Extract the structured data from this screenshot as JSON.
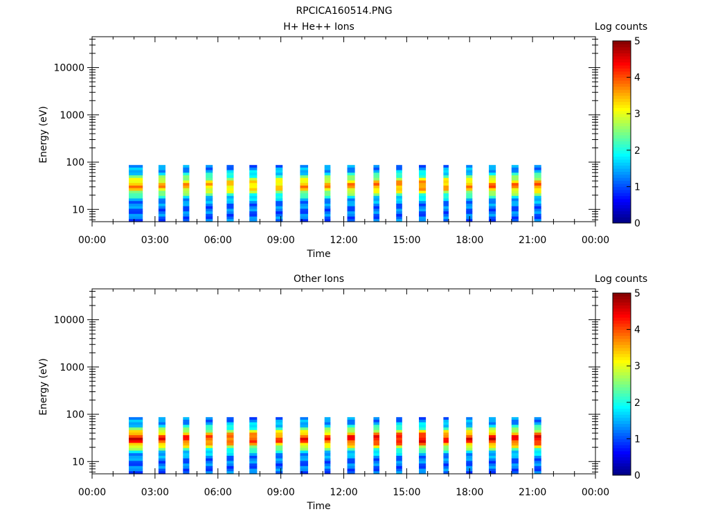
{
  "figure_title": "RPCICA160514.PNG",
  "chart_data": [
    {
      "type": "heatmap",
      "title": "H+ He++ Ions",
      "xlabel": "Time",
      "ylabel": "Energy (eV)",
      "yscale": "log",
      "ylim": [
        5.5,
        45000
      ],
      "xlim_hours": [
        0,
        24
      ],
      "x_ticks": [
        "00:00",
        "03:00",
        "06:00",
        "09:00",
        "12:00",
        "15:00",
        "18:00",
        "21:00",
        "00:00"
      ],
      "y_ticks": [
        "10",
        "100",
        "1000",
        "10000"
      ],
      "colorbar": {
        "label": "Log counts",
        "min": 0,
        "max": 5,
        "ticks": [
          "0",
          "1",
          "2",
          "3",
          "4",
          "5"
        ]
      },
      "energy_range_eV": [
        5.5,
        87
      ],
      "peak_energy_eV": 32,
      "bursts": [
        {
          "start": "01:45",
          "end": "02:25",
          "peak_log_counts": 3.6
        },
        {
          "start": "03:10",
          "end": "03:30",
          "peak_log_counts": 3.5
        },
        {
          "start": "04:20",
          "end": "04:38",
          "peak_log_counts": 3.5
        },
        {
          "start": "05:25",
          "end": "05:45",
          "peak_log_counts": 3.4
        },
        {
          "start": "06:25",
          "end": "06:45",
          "peak_log_counts": 3.4
        },
        {
          "start": "07:30",
          "end": "07:52",
          "peak_log_counts": 3.4
        },
        {
          "start": "08:45",
          "end": "09:05",
          "peak_log_counts": 3.4
        },
        {
          "start": "09:55",
          "end": "10:18",
          "peak_log_counts": 3.6
        },
        {
          "start": "11:05",
          "end": "11:22",
          "peak_log_counts": 3.5
        },
        {
          "start": "12:10",
          "end": "12:32",
          "peak_log_counts": 3.6
        },
        {
          "start": "13:25",
          "end": "13:42",
          "peak_log_counts": 3.7
        },
        {
          "start": "14:30",
          "end": "14:47",
          "peak_log_counts": 3.7
        },
        {
          "start": "15:35",
          "end": "15:55",
          "peak_log_counts": 3.8
        },
        {
          "start": "16:45",
          "end": "17:00",
          "peak_log_counts": 3.6
        },
        {
          "start": "17:50",
          "end": "18:08",
          "peak_log_counts": 3.6
        },
        {
          "start": "18:55",
          "end": "19:15",
          "peak_log_counts": 3.8
        },
        {
          "start": "20:00",
          "end": "20:20",
          "peak_log_counts": 3.7
        },
        {
          "start": "21:05",
          "end": "21:25",
          "peak_log_counts": 3.8
        }
      ]
    },
    {
      "type": "heatmap",
      "title": "Other Ions",
      "xlabel": "Time",
      "ylabel": "Energy (eV)",
      "yscale": "log",
      "ylim": [
        5.5,
        45000
      ],
      "xlim_hours": [
        0,
        24
      ],
      "x_ticks": [
        "00:00",
        "03:00",
        "06:00",
        "09:00",
        "12:00",
        "15:00",
        "18:00",
        "21:00",
        "00:00"
      ],
      "y_ticks": [
        "10",
        "100",
        "1000",
        "10000"
      ],
      "colorbar": {
        "label": "Log counts",
        "min": 0,
        "max": 5,
        "ticks": [
          "0",
          "1",
          "2",
          "3",
          "4",
          "5"
        ]
      },
      "energy_range_eV": [
        5.5,
        87
      ],
      "peak_energy_eV": 30,
      "bursts": [
        {
          "start": "01:45",
          "end": "02:25",
          "peak_log_counts": 4.4
        },
        {
          "start": "03:10",
          "end": "03:30",
          "peak_log_counts": 4.2
        },
        {
          "start": "04:20",
          "end": "04:38",
          "peak_log_counts": 4.2
        },
        {
          "start": "05:25",
          "end": "05:45",
          "peak_log_counts": 4.0
        },
        {
          "start": "06:25",
          "end": "06:45",
          "peak_log_counts": 4.0
        },
        {
          "start": "07:30",
          "end": "07:52",
          "peak_log_counts": 4.1
        },
        {
          "start": "08:45",
          "end": "09:05",
          "peak_log_counts": 4.0
        },
        {
          "start": "09:55",
          "end": "10:18",
          "peak_log_counts": 4.2
        },
        {
          "start": "11:05",
          "end": "11:22",
          "peak_log_counts": 4.1
        },
        {
          "start": "12:10",
          "end": "12:32",
          "peak_log_counts": 4.3
        },
        {
          "start": "13:25",
          "end": "13:42",
          "peak_log_counts": 4.4
        },
        {
          "start": "14:30",
          "end": "14:47",
          "peak_log_counts": 4.4
        },
        {
          "start": "15:35",
          "end": "15:55",
          "peak_log_counts": 4.5
        },
        {
          "start": "16:45",
          "end": "17:00",
          "peak_log_counts": 4.2
        },
        {
          "start": "17:50",
          "end": "18:08",
          "peak_log_counts": 4.3
        },
        {
          "start": "18:55",
          "end": "19:15",
          "peak_log_counts": 4.4
        },
        {
          "start": "20:00",
          "end": "20:20",
          "peak_log_counts": 4.3
        },
        {
          "start": "21:05",
          "end": "21:25",
          "peak_log_counts": 4.5
        }
      ]
    }
  ]
}
